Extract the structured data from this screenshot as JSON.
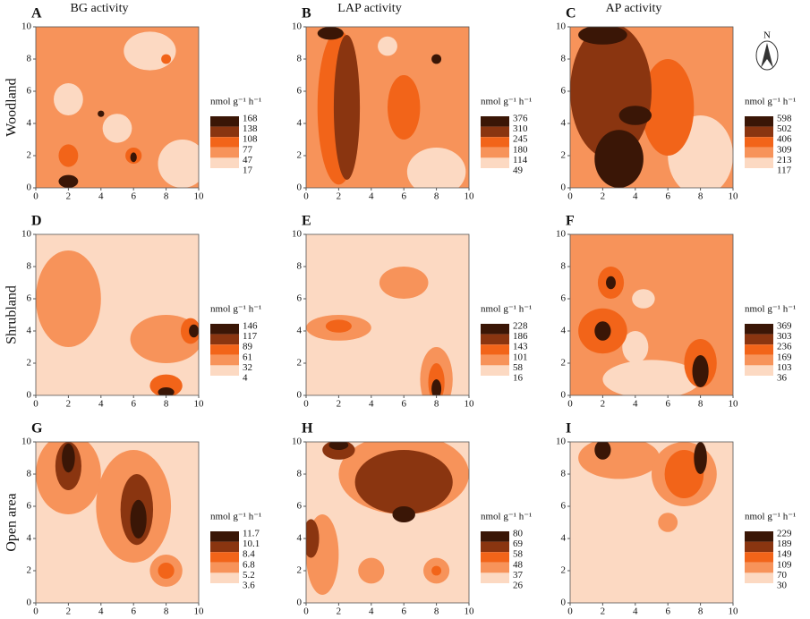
{
  "chart_data": [
    {
      "type": "contour",
      "panel": "A",
      "title": "BG activity",
      "row_label": "Woodland",
      "xlim": [
        0,
        10
      ],
      "ylim": [
        0,
        10
      ],
      "xticks": [
        0,
        2,
        4,
        6,
        8,
        10
      ],
      "yticks": [
        0,
        2,
        4,
        6,
        8,
        10
      ],
      "legend_title": "nmol g⁻¹ h⁻¹",
      "levels": [
        168,
        138,
        108,
        77,
        47,
        17
      ],
      "colors": [
        "#3a1606",
        "#8a3510",
        "#f26419",
        "#f7935a",
        "#fcd9c2"
      ]
    },
    {
      "type": "contour",
      "panel": "B",
      "title": "LAP activity",
      "xlim": [
        0,
        10
      ],
      "ylim": [
        0,
        10
      ],
      "xticks": [
        0,
        2,
        4,
        6,
        8,
        10
      ],
      "yticks": [
        0,
        2,
        4,
        6,
        8,
        10
      ],
      "legend_title": "nmol g⁻¹ h⁻¹",
      "levels": [
        376,
        310,
        245,
        180,
        114,
        49
      ],
      "colors": [
        "#3a1606",
        "#8a3510",
        "#f26419",
        "#f7935a",
        "#fcd9c2"
      ]
    },
    {
      "type": "contour",
      "panel": "C",
      "title": "AP activity",
      "north_label": "N",
      "xlim": [
        0,
        10
      ],
      "ylim": [
        0,
        10
      ],
      "xticks": [
        0,
        2,
        4,
        6,
        8,
        10
      ],
      "yticks": [
        0,
        2,
        4,
        6,
        8,
        10
      ],
      "legend_title": "nmol g⁻¹ h⁻¹",
      "levels": [
        598,
        502,
        406,
        309,
        213,
        117
      ],
      "colors": [
        "#3a1606",
        "#8a3510",
        "#f26419",
        "#f7935a",
        "#fcd9c2"
      ]
    },
    {
      "type": "contour",
      "panel": "D",
      "row_label": "Shrubland",
      "xlim": [
        0,
        10
      ],
      "ylim": [
        0,
        10
      ],
      "xticks": [
        0,
        2,
        4,
        6,
        8,
        10
      ],
      "yticks": [
        0,
        2,
        4,
        6,
        8,
        10
      ],
      "legend_title": "nmol g⁻¹ h⁻¹",
      "levels": [
        146,
        117,
        89,
        61,
        32,
        4
      ],
      "colors": [
        "#3a1606",
        "#8a3510",
        "#f26419",
        "#f7935a",
        "#fcd9c2"
      ]
    },
    {
      "type": "contour",
      "panel": "E",
      "xlim": [
        0,
        10
      ],
      "ylim": [
        0,
        10
      ],
      "xticks": [
        0,
        2,
        4,
        6,
        8,
        10
      ],
      "yticks": [
        0,
        2,
        4,
        6,
        8,
        10
      ],
      "legend_title": "nmol g⁻¹ h⁻¹",
      "levels": [
        228,
        186,
        143,
        101,
        58,
        16
      ],
      "colors": [
        "#3a1606",
        "#8a3510",
        "#f26419",
        "#f7935a",
        "#fcd9c2"
      ]
    },
    {
      "type": "contour",
      "panel": "F",
      "xlim": [
        0,
        10
      ],
      "ylim": [
        0,
        10
      ],
      "xticks": [
        0,
        2,
        4,
        6,
        8,
        10
      ],
      "yticks": [
        0,
        2,
        4,
        6,
        8,
        10
      ],
      "legend_title": "nmol g⁻¹ h⁻¹",
      "levels": [
        369,
        303,
        236,
        169,
        103,
        36
      ],
      "colors": [
        "#3a1606",
        "#8a3510",
        "#f26419",
        "#f7935a",
        "#fcd9c2"
      ]
    },
    {
      "type": "contour",
      "panel": "G",
      "row_label": "Open area",
      "xlim": [
        0,
        10
      ],
      "ylim": [
        0,
        10
      ],
      "xticks": [
        0,
        2,
        4,
        6,
        8,
        10
      ],
      "yticks": [
        0,
        2,
        4,
        6,
        8,
        10
      ],
      "legend_title": "nmol g⁻¹ h⁻¹",
      "levels": [
        11.7,
        10.1,
        8.4,
        6.8,
        5.2,
        3.6
      ],
      "colors": [
        "#3a1606",
        "#8a3510",
        "#f26419",
        "#f7935a",
        "#fcd9c2"
      ]
    },
    {
      "type": "contour",
      "panel": "H",
      "xlim": [
        0,
        10
      ],
      "ylim": [
        0,
        10
      ],
      "xticks": [
        0,
        2,
        4,
        6,
        8,
        10
      ],
      "yticks": [
        0,
        2,
        4,
        6,
        8,
        10
      ],
      "legend_title": "nmol g⁻¹ h⁻¹",
      "levels": [
        80,
        69,
        58,
        48,
        37,
        26
      ],
      "colors": [
        "#3a1606",
        "#8a3510",
        "#f26419",
        "#f7935a",
        "#fcd9c2"
      ]
    },
    {
      "type": "contour",
      "panel": "I",
      "xlim": [
        0,
        10
      ],
      "ylim": [
        0,
        10
      ],
      "xticks": [
        0,
        2,
        4,
        6,
        8,
        10
      ],
      "yticks": [
        0,
        2,
        4,
        6,
        8,
        10
      ],
      "legend_title": "nmol g⁻¹ h⁻¹",
      "levels": [
        229,
        189,
        149,
        109,
        70,
        30
      ],
      "colors": [
        "#3a1606",
        "#8a3510",
        "#f26419",
        "#f7935a",
        "#fcd9c2"
      ]
    }
  ]
}
